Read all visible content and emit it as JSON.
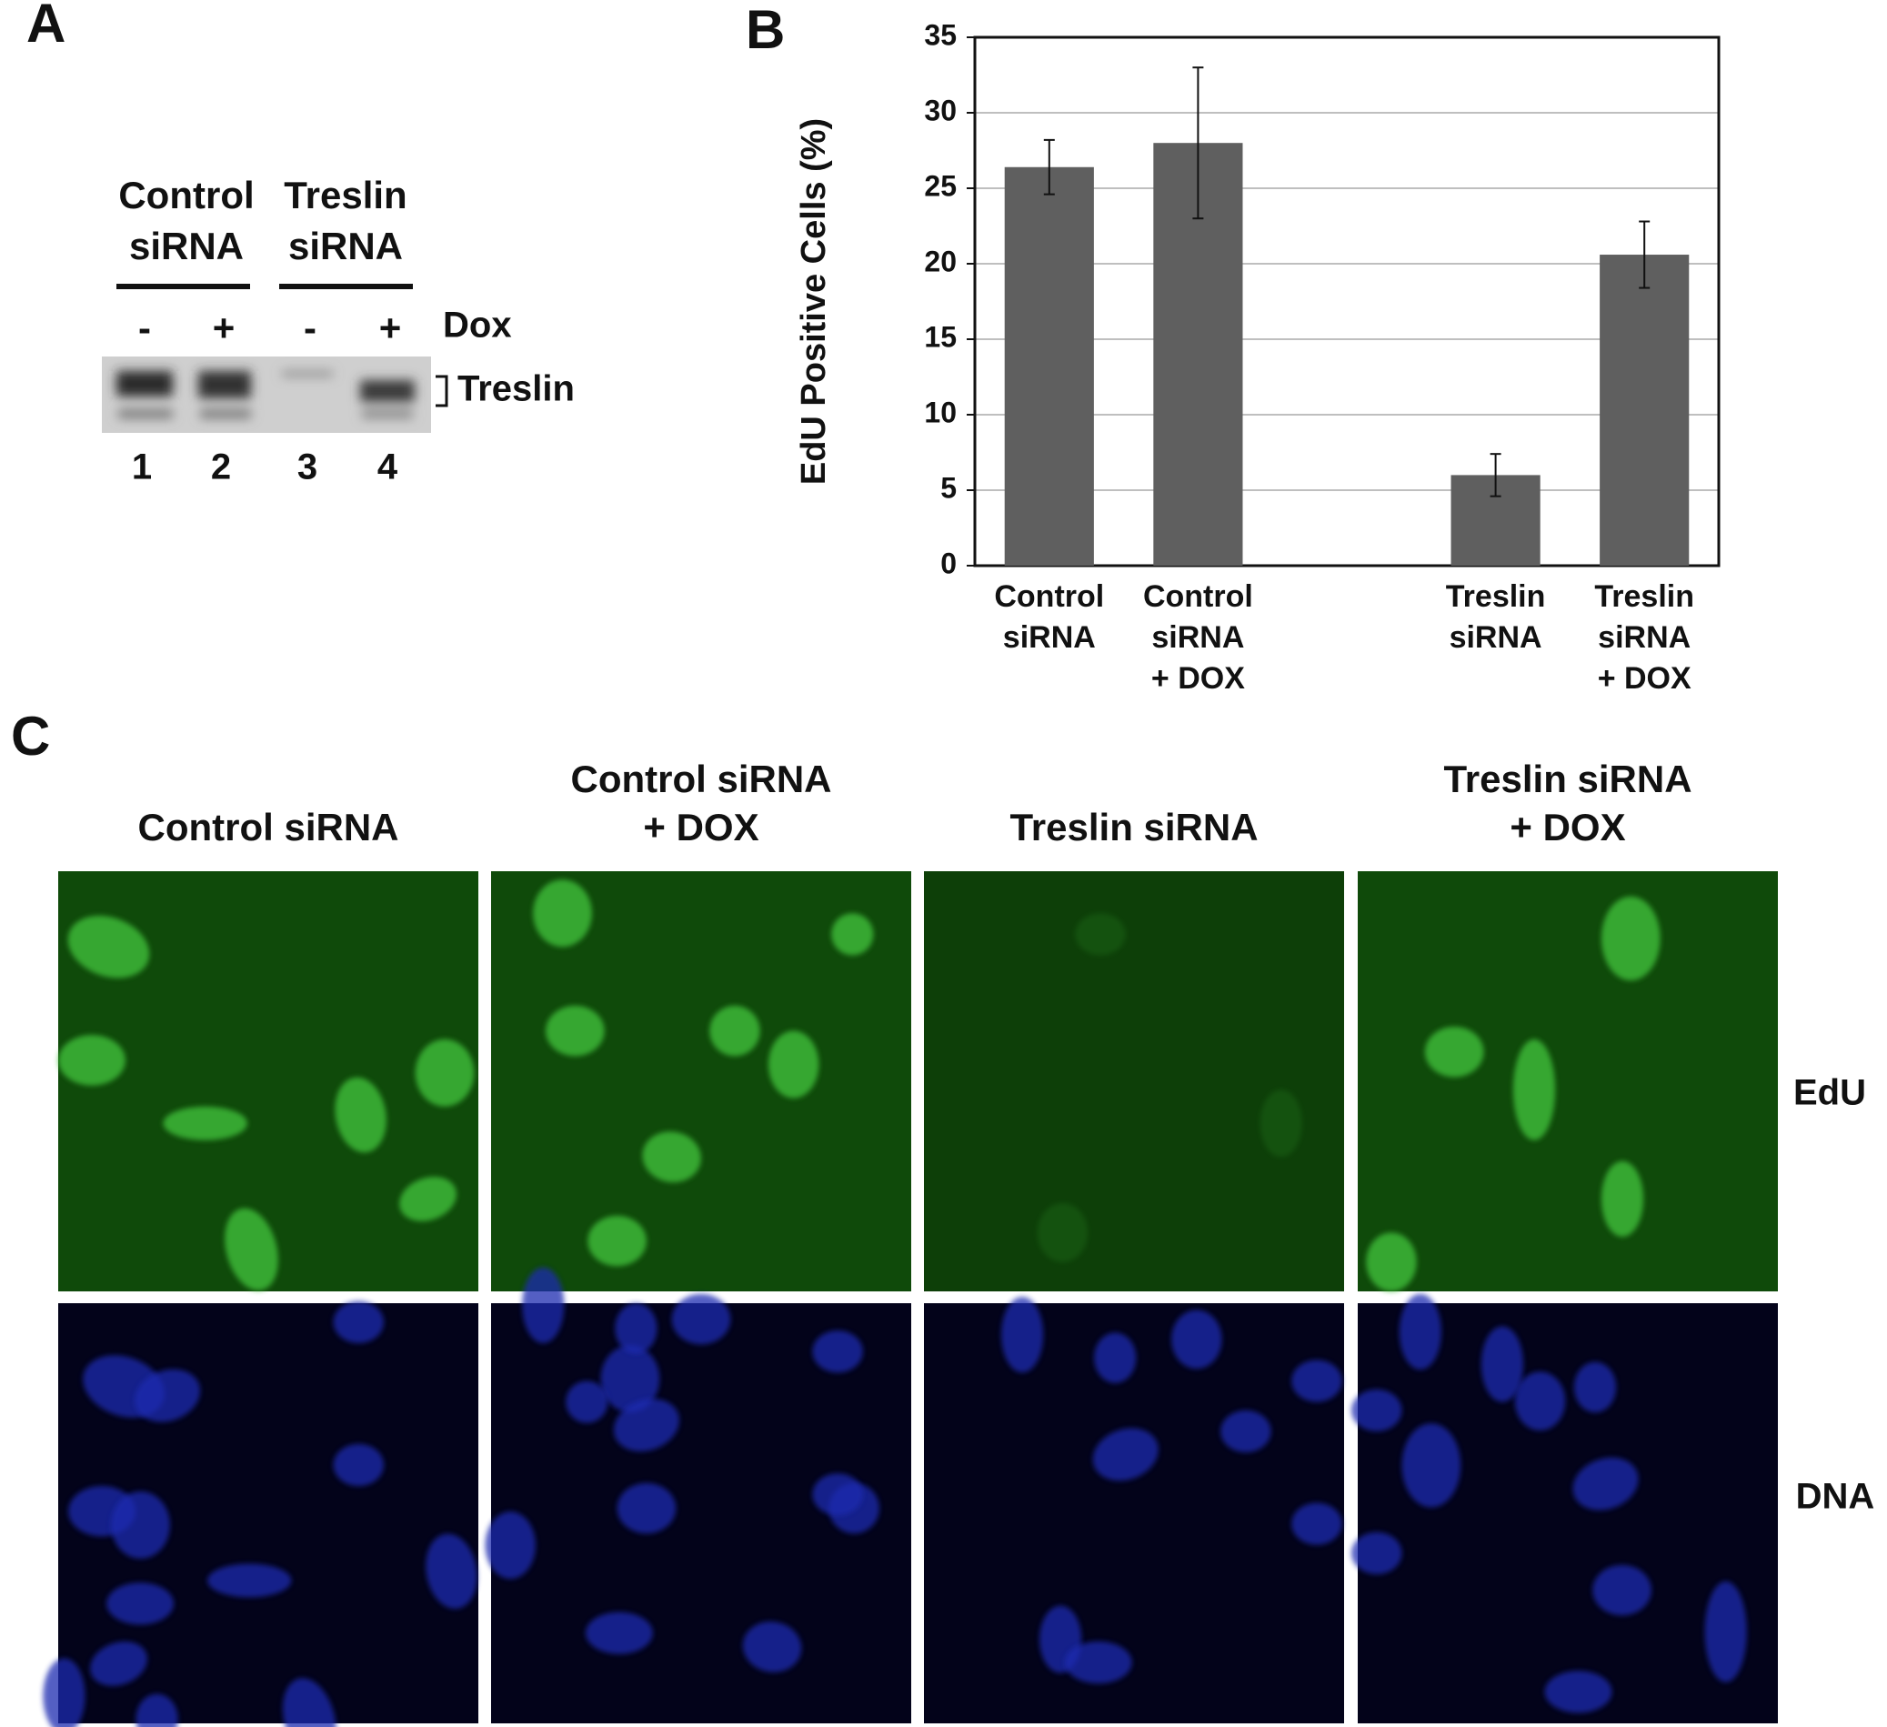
{
  "panel_a": {
    "label": "A",
    "headers": [
      [
        "Control",
        "siRNA"
      ],
      [
        "Treslin",
        "siRNA"
      ]
    ],
    "dox_signs": [
      "-",
      "+",
      "-",
      "+"
    ],
    "dox_label": "Dox",
    "band_label": "Treslin",
    "lanes": [
      "1",
      "2",
      "3",
      "4"
    ]
  },
  "chart_data": {
    "type": "bar",
    "panel_label": "B",
    "ylabel": "EdU Positive Cells (%)",
    "categories": [
      [
        "Control",
        "siRNA"
      ],
      [
        "Control",
        "siRNA",
        "+ DOX"
      ],
      null,
      [
        "Treslin",
        "siRNA"
      ],
      [
        "Treslin",
        "siRNA",
        "+ DOX"
      ]
    ],
    "values": [
      26.4,
      28,
      null,
      6,
      20.6
    ],
    "errors": [
      1.8,
      5,
      null,
      1.4,
      2.2
    ],
    "ylim": [
      0,
      35
    ],
    "yticks": [
      0,
      5,
      10,
      15,
      20,
      25,
      30,
      35
    ],
    "grid": true,
    "color": "#5f5f5f"
  },
  "panel_c": {
    "label": "C",
    "columns": [
      [
        "Control siRNA"
      ],
      [
        "Control siRNA",
        "+ DOX"
      ],
      [
        "Treslin siRNA"
      ],
      [
        "Treslin siRNA",
        "+ DOX"
      ]
    ],
    "rows": [
      "EdU",
      "DNA"
    ]
  }
}
